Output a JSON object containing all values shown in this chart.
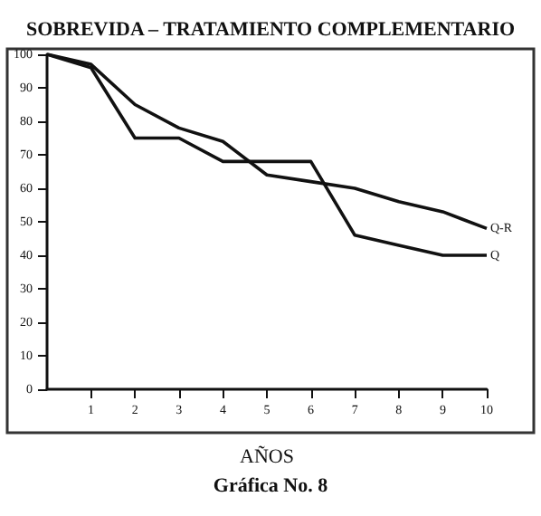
{
  "chart_data": {
    "type": "line",
    "title": "SOBREVIDA – TRATAMIENTO COMPLEMENTARIO",
    "xlabel": "AÑOS",
    "annotations": [
      "Gráfica No. 8"
    ],
    "x": [
      0,
      1,
      2,
      3,
      4,
      5,
      6,
      7,
      8,
      9,
      10
    ],
    "series": [
      {
        "name": "Q-R",
        "color": "#111111",
        "values": [
          100,
          97,
          85,
          78,
          74,
          64,
          62,
          60,
          56,
          53,
          48
        ]
      },
      {
        "name": "Q",
        "color": "#111111",
        "values": [
          100,
          96,
          75,
          75,
          68,
          68,
          68,
          46,
          43,
          40,
          40
        ]
      }
    ],
    "xlim": [
      0,
      10
    ],
    "xticks": [
      1,
      2,
      3,
      4,
      5,
      6,
      7,
      8,
      9,
      10
    ],
    "ylim": [
      0,
      100
    ],
    "yticks": [
      0,
      10,
      20,
      30,
      40,
      50,
      60,
      70,
      80,
      90,
      100
    ],
    "grid": false,
    "legend": false,
    "marker": "none",
    "line_style": "solid"
  }
}
